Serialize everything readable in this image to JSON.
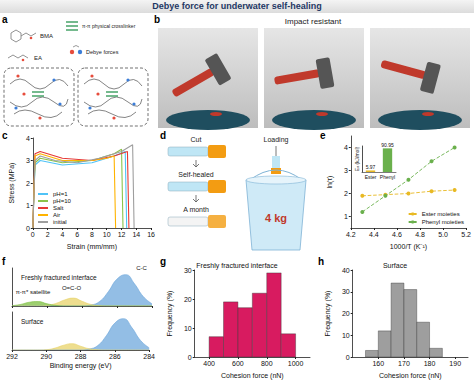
{
  "title": "Debye force for underwater self-healing",
  "panels": {
    "a": {
      "label": "a",
      "texts": {
        "monomer1": "BMA",
        "monomer2": "EA",
        "crosslinker": "π-π physical crosslinker",
        "force": "Debye forces"
      }
    },
    "b": {
      "label": "b",
      "title": "Impact resistant"
    },
    "d": {
      "label": "d",
      "texts": {
        "cut": "Cut",
        "loading": "Loading",
        "healed": "Self-healed",
        "aged": "A month",
        "weight": "4 kg"
      }
    }
  },
  "chart_data": [
    {
      "panel": "c",
      "type": "line",
      "x_label": "Strain (mm/mm)",
      "y_label": "Stress (MPa)",
      "xlim": [
        0,
        16
      ],
      "xticks": [
        0,
        2,
        4,
        6,
        8,
        10,
        12,
        14,
        16
      ],
      "ylim": [
        0,
        4
      ],
      "yticks": [
        0,
        1,
        2,
        3,
        4
      ],
      "legend": "bottom-left",
      "series": [
        {
          "name": "pH=1",
          "color": "#4fc3f7",
          "x": [
            0,
            0.3,
            1,
            4,
            8,
            11,
            12.5,
            12.7
          ],
          "values": [
            0,
            2.8,
            3.0,
            2.8,
            2.9,
            3.2,
            3.4,
            0
          ]
        },
        {
          "name": "pH=10",
          "color": "#8bc34a",
          "x": [
            0,
            0.3,
            1,
            4,
            8,
            11,
            12,
            12.2
          ],
          "values": [
            0,
            2.9,
            3.1,
            2.9,
            3.0,
            3.3,
            3.5,
            0
          ]
        },
        {
          "name": "Salt",
          "color": "#e53935",
          "x": [
            0,
            0.3,
            1,
            4,
            8,
            11,
            12.8,
            13
          ],
          "values": [
            0,
            3.3,
            3.4,
            3.1,
            3.0,
            3.2,
            3.4,
            0
          ]
        },
        {
          "name": "Air",
          "color": "#ffb300",
          "x": [
            0,
            0.3,
            1,
            4,
            8,
            10,
            11,
            11.2
          ],
          "values": [
            0,
            3.2,
            3.3,
            3.0,
            3.0,
            3.1,
            3.2,
            0
          ]
        },
        {
          "name": "initial",
          "color": "#9e9e9e",
          "x": [
            0,
            0.3,
            1,
            3,
            6,
            9,
            12,
            13.5,
            13.7
          ],
          "values": [
            0,
            3.0,
            3.2,
            3.0,
            2.9,
            3.1,
            3.4,
            3.7,
            0
          ]
        }
      ]
    },
    {
      "panel": "e",
      "type": "scatter",
      "x_label": "1000/T (K⁻¹)",
      "y_label": "ln(τ)",
      "xlim": [
        4.2,
        5.2
      ],
      "xticks": [
        4.2,
        4.4,
        4.6,
        4.8,
        {
          "value": 5,
          "label": "5.0"
        },
        5.2
      ],
      "ylim": [
        0.5,
        4.5
      ],
      "yticks": [
        1,
        2,
        3,
        4
      ],
      "legend": "bottom-right",
      "x": [
        4.3,
        4.5,
        4.7,
        4.9,
        5.1
      ],
      "series": [
        {
          "name": "Ester moieties",
          "color": "#e8b923",
          "marker": "circle",
          "line_style": "dashed",
          "values": [
            1.9,
            1.95,
            2.0,
            2.1,
            2.15
          ]
        },
        {
          "name": "Phenyl moieties",
          "color": "#6ab04c",
          "marker": "circle",
          "line_style": "dashed",
          "values": [
            1.2,
            1.9,
            2.6,
            3.4,
            4.0
          ]
        }
      ],
      "inset": {
        "type": "bar",
        "y_label": "Eₐ (kJ/mol)",
        "categories": [
          "Ester",
          "Phenyl"
        ],
        "values": [
          5.97,
          90.95
        ],
        "colors": [
          "#e8b923",
          "#6ab04c"
        ],
        "data_labels": true,
        "ylim": [
          0,
          100
        ],
        "tick_labels": "x"
      }
    },
    {
      "panel": "f",
      "type": "area",
      "x_label": "Binding energy (eV)",
      "tick_labels": "x",
      "xlim": [
        292,
        284
      ],
      "xticks": [
        292,
        290,
        288,
        286,
        284
      ],
      "x": [
        292,
        291.5,
        291,
        290.5,
        290,
        289.5,
        289,
        288.5,
        288,
        287.5,
        287,
        286.5,
        286,
        285.5,
        285,
        284.5,
        284
      ],
      "subplots": [
        {
          "title": "Freshly fractured interface",
          "ylim": [
            0,
            1.2
          ],
          "series": [
            {
              "color": "#6fa8dc",
              "values": [
                0,
                0,
                0,
                0,
                0,
                0,
                0,
                0,
                0,
                0.03,
                0.14,
                0.45,
                0.85,
                0.99,
                0.7,
                0.3,
                0.07
              ]
            },
            {
              "color": "#e8d36a",
              "values": [
                0,
                0,
                0,
                0,
                0.02,
                0.08,
                0.19,
                0.25,
                0.15,
                0.05,
                0.01,
                0,
                0,
                0,
                0,
                0,
                0
              ]
            },
            {
              "color": "#7cbf3f",
              "values": [
                0.01,
                0.05,
                0.12,
                0.14,
                0.07,
                0.02,
                0,
                0,
                0,
                0,
                0,
                0,
                0,
                0,
                0,
                0,
                0
              ]
            }
          ],
          "annotations": [
            {
              "text": "π-π* satellite",
              "x": 290.8,
              "y": 0.2
            },
            {
              "text": "O=C-O",
              "x": 288.6,
              "y": 0.32
            },
            {
              "text": "C-C",
              "x": 284.6,
              "y": 0.95
            }
          ]
        },
        {
          "title": "Surface",
          "ylim": [
            0,
            1.2
          ],
          "series": [
            {
              "color": "#6fa8dc",
              "values": [
                0,
                0,
                0,
                0,
                0,
                0,
                0,
                0,
                0,
                0.03,
                0.14,
                0.45,
                0.85,
                0.99,
                0.7,
                0.3,
                0.07
              ]
            },
            {
              "color": "#e8d36a",
              "values": [
                0,
                0,
                0,
                0,
                0.01,
                0.06,
                0.15,
                0.2,
                0.12,
                0.04,
                0.01,
                0,
                0,
                0,
                0,
                0,
                0
              ]
            }
          ]
        }
      ]
    },
    {
      "panel": "g",
      "type": "histogram",
      "title": "Freshly fractured interface",
      "x_label": "Cohesion force (nN)",
      "y_label": "Frequency (%)",
      "bins": [
        400,
        500,
        600,
        700,
        800,
        900,
        1000
      ],
      "values": [
        7,
        19,
        17,
        22,
        29,
        8
      ],
      "color": "#d81b60",
      "xlim": [
        300,
        1100
      ],
      "xticks": [
        400,
        600,
        800,
        1000
      ],
      "ylim": [
        0,
        30
      ],
      "yticks": [
        0,
        10,
        20,
        30
      ]
    },
    {
      "panel": "h",
      "type": "histogram",
      "title": "Surface",
      "x_label": "Cohesion force (nN)",
      "y_label": "Frequency (%)",
      "bins": [
        155,
        160,
        165,
        170,
        175,
        180,
        185
      ],
      "values": [
        3,
        12,
        34,
        31,
        16,
        4
      ],
      "color": "#9e9e9e",
      "xlim": [
        150,
        195
      ],
      "xticks": [
        160,
        170,
        180,
        190
      ],
      "ylim": [
        0,
        40
      ],
      "yticks": [
        0,
        10,
        20,
        30,
        40
      ]
    }
  ]
}
